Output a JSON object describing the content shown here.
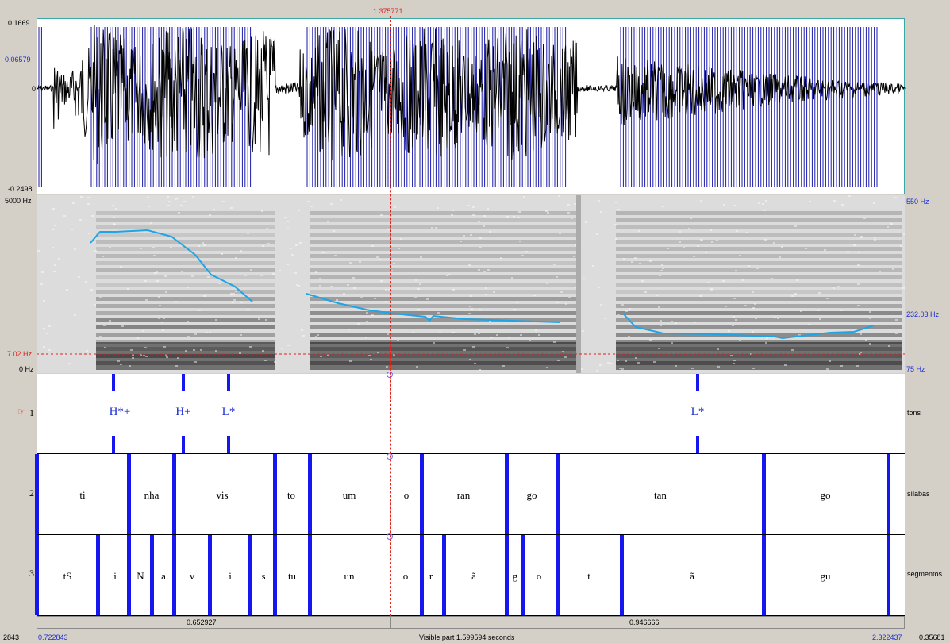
{
  "cursor": {
    "time": "1.375771"
  },
  "waveform": {
    "amp_max": "0.1669",
    "amp_mid": "0.06579",
    "amp_zero": "0",
    "amp_min": "-0.2498"
  },
  "spectrogram": {
    "freq_max": "5000 Hz",
    "freq_cursor": "7.02 Hz",
    "freq_min": "0 Hz",
    "pitch_max": "550 Hz",
    "pitch_cursor": "232.03 Hz",
    "pitch_min": "75 Hz"
  },
  "tiers": [
    {
      "number": "1",
      "name": "tons"
    },
    {
      "number": "2",
      "name": "sílabas"
    },
    {
      "number": "3",
      "name": "segmentos"
    }
  ],
  "tones": [
    "H*+",
    "H+",
    "L*",
    "L*"
  ],
  "syllables": [
    "ti",
    "nha",
    "vis",
    "to",
    "um",
    "o",
    "ran",
    "go",
    "tan",
    "go"
  ],
  "segments": [
    "tS",
    "i",
    "N",
    "a",
    "v",
    "i",
    "s",
    "tu",
    "un",
    "o",
    "r",
    "ã",
    "g",
    "o",
    "t",
    "ã",
    "gu"
  ],
  "bottom": {
    "left_duration": "0.652927",
    "right_duration": "0.946666",
    "left_edge": "2843",
    "start_time": "0.722843",
    "visible": "Visible part 1.599594 seconds",
    "end_time": "2.322437",
    "right_edge": "0.35681"
  },
  "colors": {
    "boundary": "#1616ee",
    "pitch": "#1ea5e8",
    "cursor": "#e0241b"
  }
}
